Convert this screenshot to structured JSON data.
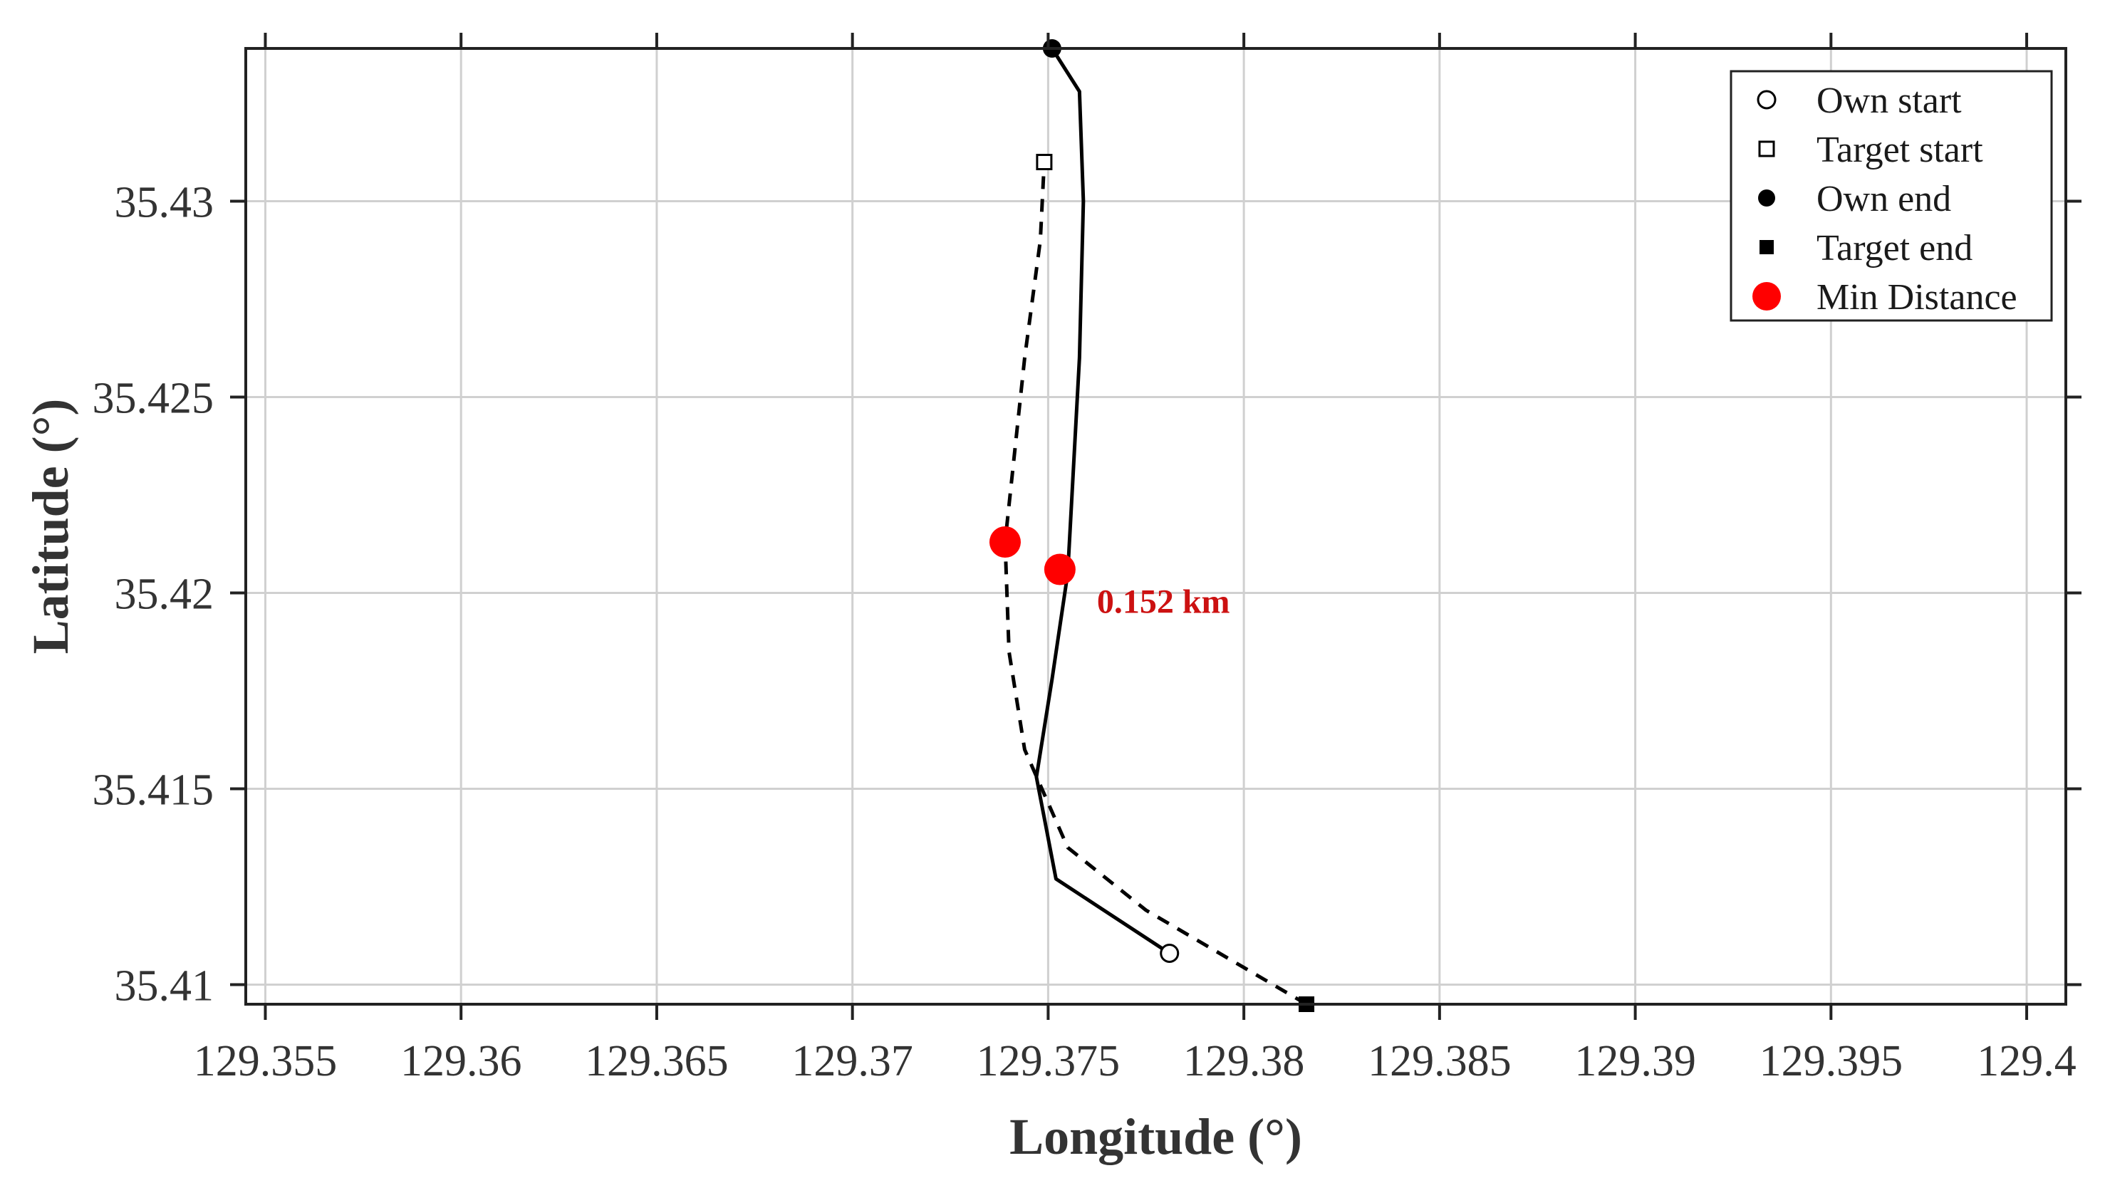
{
  "chart_data": {
    "type": "line",
    "title": "",
    "xlabel": "Longitude (°)",
    "ylabel": "Latitude (°)",
    "xlim": [
      129.3545,
      129.401
    ],
    "ylim": [
      35.4095,
      35.4339
    ],
    "x_ticks": [
      {
        "value": 129.355,
        "label": "129.355"
      },
      {
        "value": 129.36,
        "label": "129.36"
      },
      {
        "value": 129.365,
        "label": "129.365"
      },
      {
        "value": 129.37,
        "label": "129.37"
      },
      {
        "value": 129.375,
        "label": "129.375"
      },
      {
        "value": 129.38,
        "label": "129.38"
      },
      {
        "value": 129.385,
        "label": "129.385"
      },
      {
        "value": 129.39,
        "label": "129.39"
      },
      {
        "value": 129.395,
        "label": "129.395"
      },
      {
        "value": 129.4,
        "label": "129.4"
      }
    ],
    "y_ticks": [
      {
        "value": 35.41,
        "label": "35.41"
      },
      {
        "value": 35.415,
        "label": "35.415"
      },
      {
        "value": 35.42,
        "label": "35.42"
      },
      {
        "value": 35.425,
        "label": "35.425"
      },
      {
        "value": 35.43,
        "label": "35.43"
      }
    ],
    "grid": true,
    "legend_position": "top-right",
    "legend": [
      {
        "label": "Own start",
        "marker": "open-circle",
        "color": "#000000"
      },
      {
        "label": "Target start",
        "marker": "open-square",
        "color": "#000000"
      },
      {
        "label": "Own end",
        "marker": "filled-circle",
        "color": "#000000"
      },
      {
        "label": "Target end",
        "marker": "filled-square",
        "color": "#000000"
      },
      {
        "label": "Min Distance",
        "marker": "filled-circle",
        "color": "#ff0000"
      }
    ],
    "series": [
      {
        "style": "solid",
        "color": "#000000",
        "x": [
          129.3781,
          129.3752,
          129.3747,
          129.3751,
          129.3755,
          129.3758,
          129.3759,
          129.3758,
          129.3751
        ],
        "y": [
          35.4108,
          35.4127,
          35.4153,
          35.4178,
          35.4205,
          35.426,
          35.43,
          35.4328,
          35.4339
        ]
      },
      {
        "style": "dashed",
        "color": "#000000",
        "x": [
          129.3816,
          129.3775,
          129.3755,
          129.3744,
          129.374,
          129.3739,
          129.3744,
          129.3748,
          129.3749
        ],
        "y": [
          35.4095,
          35.4119,
          35.4135,
          35.416,
          35.4185,
          35.4213,
          35.426,
          35.429,
          35.431
        ]
      }
    ],
    "markers": {
      "own_start": {
        "x": 129.3781,
        "y": 35.4108
      },
      "target_start": {
        "x": 129.3749,
        "y": 35.431
      },
      "own_end": {
        "x": 129.3751,
        "y": 35.4339
      },
      "target_end": {
        "x": 129.3816,
        "y": 35.4095
      }
    },
    "min_distance_points": [
      {
        "x": 129.3739,
        "y": 35.4213
      },
      {
        "x": 129.3753,
        "y": 35.4206
      }
    ],
    "annotation": {
      "text": "0.152 km",
      "x": 129.3757,
      "y": 35.42,
      "color": "#cc1111"
    }
  }
}
